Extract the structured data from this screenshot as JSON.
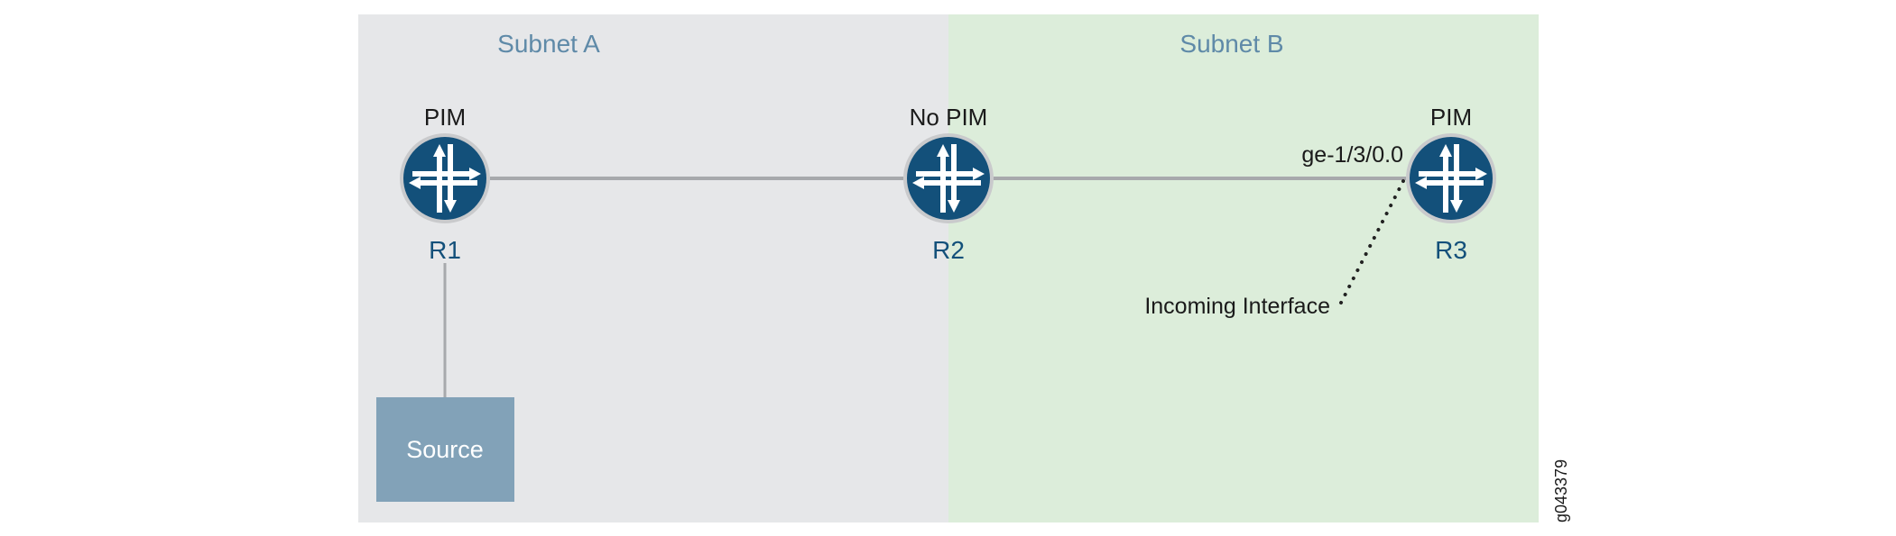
{
  "subnets": [
    {
      "label": "Subnet A",
      "color": "#e6e7e9"
    },
    {
      "label": "Subnet B",
      "color": "#dcedda"
    }
  ],
  "routers": [
    {
      "name": "R1",
      "status": "PIM"
    },
    {
      "name": "R2",
      "status": "No PIM"
    },
    {
      "name": "R3",
      "status": "PIM"
    }
  ],
  "source": {
    "label": "Source",
    "color": "#82a2b8"
  },
  "interface_label": "ge-1/3/0.0",
  "incoming_interface_label": "Incoming Interface",
  "figure_id": "g043379",
  "colors": {
    "router": "#13507a",
    "link": "#a7a9ac",
    "router_label": "#13507a"
  }
}
